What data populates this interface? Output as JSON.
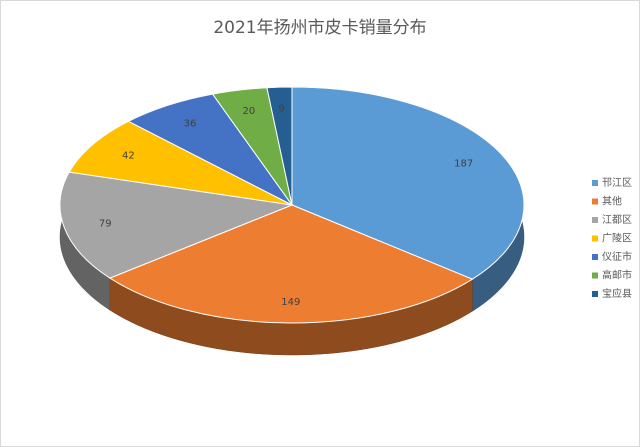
{
  "chart_data": {
    "type": "pie3d",
    "title": "2021年扬州市皮卡销量分布",
    "categories": [
      "邗江区",
      "其他",
      "江都区",
      "广陵区",
      "仪征市",
      "高邮市",
      "宝应县"
    ],
    "values": [
      187,
      149,
      79,
      42,
      36,
      20,
      9
    ],
    "colors": [
      "#5b9bd5",
      "#ed7d31",
      "#a5a5a5",
      "#ffc000",
      "#4472c4",
      "#70ad47",
      "#255e91"
    ],
    "legend": "right"
  }
}
